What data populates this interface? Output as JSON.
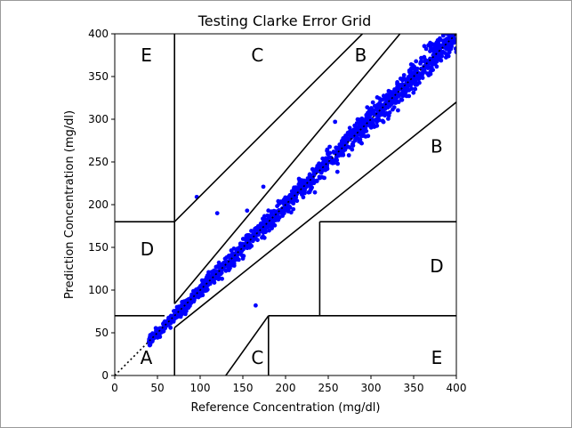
{
  "chart_data": {
    "type": "scatter",
    "title": "Testing Clarke Error Grid",
    "xlabel": "Reference Concentration (mg/dl)",
    "ylabel": "Prediction Concentration (mg/dl)",
    "xlim": [
      0,
      400
    ],
    "ylim": [
      0,
      400
    ],
    "xticks": [
      0,
      50,
      100,
      150,
      200,
      250,
      300,
      350,
      400
    ],
    "yticks": [
      0,
      50,
      100,
      150,
      200,
      250,
      300,
      350,
      400
    ],
    "grid": false,
    "point_color": "#0000ff",
    "zone_labels": [
      {
        "text": "A",
        "x": 37,
        "y": 21
      },
      {
        "text": "B",
        "x": 288,
        "y": 375
      },
      {
        "text": "B",
        "x": 377,
        "y": 268
      },
      {
        "text": "C",
        "x": 167,
        "y": 375
      },
      {
        "text": "C",
        "x": 167,
        "y": 21
      },
      {
        "text": "D",
        "x": 38,
        "y": 148
      },
      {
        "text": "D",
        "x": 377,
        "y": 128
      },
      {
        "text": "E",
        "x": 37,
        "y": 375
      },
      {
        "text": "E",
        "x": 377,
        "y": 21
      }
    ],
    "zone_boundaries": [
      [
        [
          0,
          0
        ],
        [
          400,
          400
        ]
      ],
      [
        [
          70,
          84
        ],
        [
          70,
          400
        ]
      ],
      [
        [
          70,
          0
        ],
        [
          70,
          56
        ]
      ],
      [
        [
          0,
          70
        ],
        [
          58.3,
          70
        ]
      ],
      [
        [
          70,
          180
        ],
        [
          290,
          400
        ]
      ],
      [
        [
          130,
          0
        ],
        [
          180,
          70
        ]
      ],
      [
        [
          180,
          70
        ],
        [
          400,
          70
        ]
      ],
      [
        [
          180,
          0
        ],
        [
          180,
          70
        ]
      ],
      [
        [
          240,
          70
        ],
        [
          240,
          180
        ]
      ],
      [
        [
          240,
          180
        ],
        [
          400,
          180
        ]
      ],
      [
        [
          0,
          180
        ],
        [
          70,
          180
        ]
      ],
      [
        [
          70,
          56
        ],
        [
          400,
          320
        ]
      ],
      [
        [
          70,
          84
        ],
        [
          334,
          400
        ]
      ]
    ],
    "outliers": [
      [
        96,
        209
      ],
      [
        120,
        190
      ],
      [
        165,
        82
      ],
      [
        155,
        193
      ],
      [
        174,
        221
      ],
      [
        258,
        297
      ]
    ],
    "series_trend": {
      "x_start": 40,
      "x_end": 400,
      "slope": 1.0,
      "spread": 6
    }
  }
}
